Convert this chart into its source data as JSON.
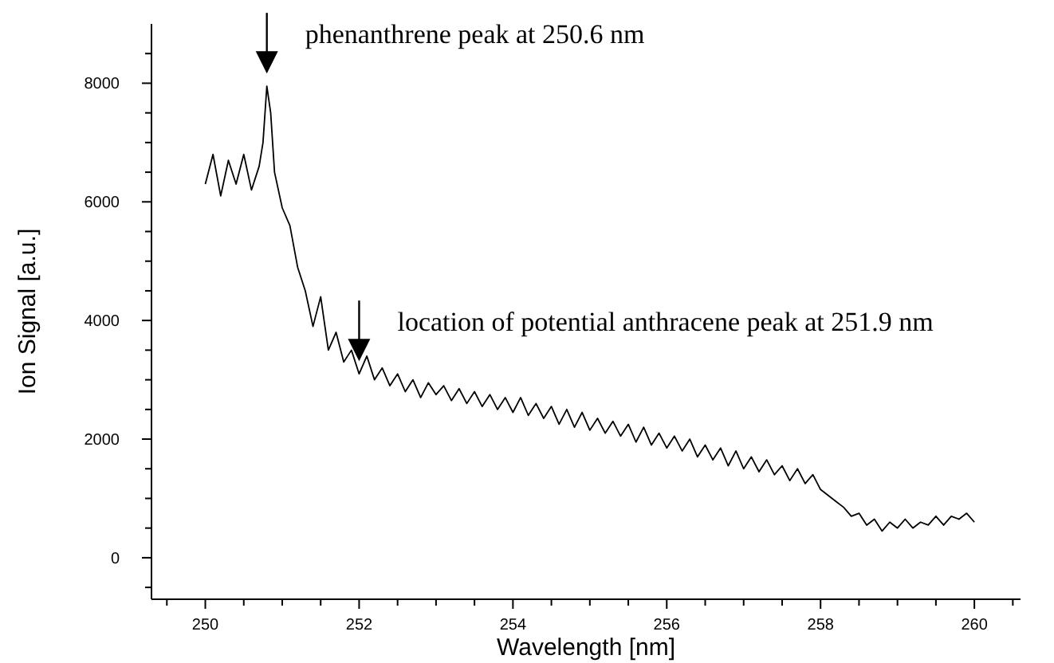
{
  "chart_data": {
    "type": "line",
    "xlabel": "Wavelength [nm]",
    "ylabel": "Ion Signal [a.u.]",
    "xlim": [
      249.3,
      260.6
    ],
    "ylim": [
      -700,
      9000
    ],
    "xticks": [
      250,
      {
        "value": 250.5,
        "label": null
      },
      252,
      {
        "value": 251,
        "label": null
      },
      {
        "value": 251.5,
        "label": null
      },
      {
        "value": 252.5,
        "label": null
      },
      254,
      {
        "value": 253,
        "label": null
      },
      {
        "value": 253.5,
        "label": null
      },
      {
        "value": 254.5,
        "label": null
      },
      256,
      {
        "value": 255,
        "label": null
      },
      {
        "value": 255.5,
        "label": null
      },
      {
        "value": 256.5,
        "label": null
      },
      258,
      {
        "value": 257,
        "label": null
      },
      {
        "value": 257.5,
        "label": null
      },
      {
        "value": 258.5,
        "label": null
      },
      260,
      {
        "value": 259,
        "label": null
      },
      {
        "value": 259.5,
        "label": null
      },
      {
        "value": 249.5,
        "label": null
      },
      {
        "value": 260.5,
        "label": null
      }
    ],
    "yticks": [
      0,
      {
        "value": 500,
        "label": null
      },
      {
        "value": 1000,
        "label": null
      },
      {
        "value": 1500,
        "label": null
      },
      2000,
      {
        "value": 2500,
        "label": null
      },
      {
        "value": 3000,
        "label": null
      },
      {
        "value": 3500,
        "label": null
      },
      4000,
      {
        "value": 4500,
        "label": null
      },
      {
        "value": 5000,
        "label": null
      },
      {
        "value": 5500,
        "label": null
      },
      6000,
      {
        "value": 6500,
        "label": null
      },
      {
        "value": 7000,
        "label": null
      },
      {
        "value": 7500,
        "label": null
      },
      8000,
      {
        "value": 8500,
        "label": null
      },
      {
        "value": -500,
        "label": null
      }
    ],
    "grid": false,
    "marker": "none",
    "line_style": "solid",
    "annotations": [
      {
        "text": "phenanthrene peak at 250.6 nm",
        "x": 250.8,
        "y": 7950
      },
      {
        "text": "location of potential anthracene peak at 251.9 nm",
        "x": 252.0,
        "y": 3100
      }
    ],
    "series": [
      {
        "color": "#000000",
        "x": [
          250.0,
          250.1,
          250.2,
          250.3,
          250.4,
          250.5,
          250.6,
          250.7,
          250.75,
          250.8,
          250.85,
          250.9,
          251.0,
          251.1,
          251.2,
          251.3,
          251.4,
          251.5,
          251.6,
          251.7,
          251.8,
          251.9,
          252.0,
          252.1,
          252.2,
          252.3,
          252.4,
          252.5,
          252.6,
          252.7,
          252.8,
          252.9,
          253.0,
          253.1,
          253.2,
          253.3,
          253.4,
          253.5,
          253.6,
          253.7,
          253.8,
          253.9,
          254.0,
          254.1,
          254.2,
          254.3,
          254.4,
          254.5,
          254.6,
          254.7,
          254.8,
          254.9,
          255.0,
          255.1,
          255.2,
          255.3,
          255.4,
          255.5,
          255.6,
          255.7,
          255.8,
          255.9,
          256.0,
          256.1,
          256.2,
          256.3,
          256.4,
          256.5,
          256.6,
          256.7,
          256.8,
          256.9,
          257.0,
          257.1,
          257.2,
          257.3,
          257.4,
          257.5,
          257.6,
          257.7,
          257.8,
          257.9,
          258.0,
          258.1,
          258.2,
          258.3,
          258.4,
          258.5,
          258.6,
          258.7,
          258.8,
          258.9,
          259.0,
          259.1,
          259.2,
          259.3,
          259.4,
          259.5,
          259.6,
          259.7,
          259.8,
          259.9,
          260.0
        ],
        "values": [
          6300,
          6800,
          6100,
          6700,
          6300,
          6800,
          6200,
          6600,
          7000,
          7950,
          7500,
          6500,
          5900,
          5600,
          4900,
          4500,
          3900,
          4400,
          3500,
          3800,
          3300,
          3500,
          3100,
          3400,
          3000,
          3200,
          2900,
          3100,
          2800,
          3000,
          2700,
          2950,
          2750,
          2900,
          2650,
          2850,
          2600,
          2800,
          2550,
          2750,
          2500,
          2700,
          2450,
          2700,
          2400,
          2600,
          2350,
          2550,
          2250,
          2500,
          2200,
          2450,
          2150,
          2350,
          2100,
          2300,
          2050,
          2250,
          1950,
          2200,
          1900,
          2100,
          1850,
          2050,
          1800,
          2000,
          1700,
          1900,
          1650,
          1850,
          1550,
          1800,
          1500,
          1700,
          1450,
          1650,
          1400,
          1550,
          1300,
          1500,
          1250,
          1400,
          1150,
          1050,
          950,
          850,
          700,
          750,
          550,
          650,
          450,
          600,
          500,
          650,
          500,
          600,
          550,
          700,
          550,
          700,
          650,
          750,
          600
        ]
      }
    ]
  }
}
